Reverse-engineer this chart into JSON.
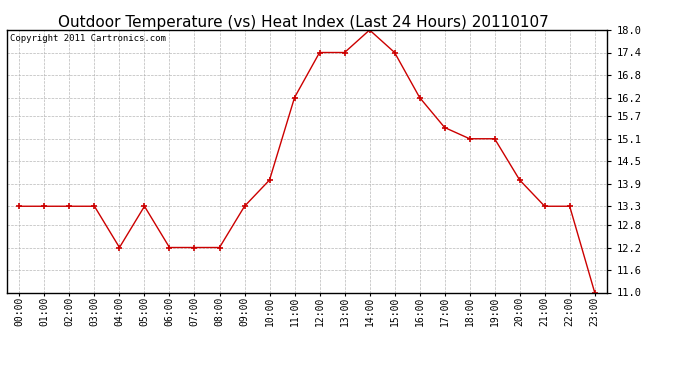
{
  "title": "Outdoor Temperature (vs) Heat Index (Last 24 Hours) 20110107",
  "copyright": "Copyright 2011 Cartronics.com",
  "x_labels": [
    "00:00",
    "01:00",
    "02:00",
    "03:00",
    "04:00",
    "05:00",
    "06:00",
    "07:00",
    "08:00",
    "09:00",
    "10:00",
    "11:00",
    "12:00",
    "13:00",
    "14:00",
    "15:00",
    "16:00",
    "17:00",
    "18:00",
    "19:00",
    "20:00",
    "21:00",
    "22:00",
    "23:00"
  ],
  "y_values": [
    13.3,
    13.3,
    13.3,
    13.3,
    12.2,
    13.3,
    12.2,
    12.2,
    12.2,
    13.3,
    14.0,
    16.2,
    17.4,
    17.4,
    18.0,
    17.4,
    16.2,
    15.4,
    15.1,
    15.1,
    14.0,
    13.3,
    13.3,
    11.0
  ],
  "line_color": "#cc0000",
  "marker_color": "#cc0000",
  "background_color": "#ffffff",
  "grid_color": "#b0b0b0",
  "ylim_min": 11.0,
  "ylim_max": 18.0,
  "yticks": [
    11.0,
    11.6,
    12.2,
    12.8,
    13.3,
    13.9,
    14.5,
    15.1,
    15.7,
    16.2,
    16.8,
    17.4,
    18.0
  ],
  "title_fontsize": 11,
  "copyright_fontsize": 6.5,
  "tick_fontsize": 7,
  "ytick_fontsize": 7.5
}
